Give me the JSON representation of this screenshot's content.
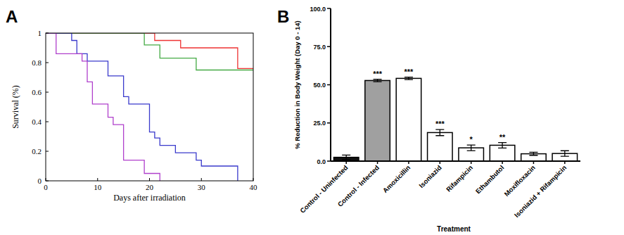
{
  "chart_data": [
    {
      "type": "line",
      "title": "A",
      "x_label": "Days after irradiation",
      "y_label": "Survival (%)",
      "xlim": [
        0,
        40
      ],
      "ylim": [
        0,
        1
      ],
      "xticks": [
        0,
        10,
        20,
        30,
        40
      ],
      "yticks": [
        0,
        0.2,
        0.4,
        0.6,
        0.8,
        1
      ],
      "grid": false,
      "line_style": "step",
      "series": [
        {
          "color": "#ee3333",
          "x": [
            0,
            21,
            26,
            37,
            40
          ],
          "values": [
            1,
            0.95,
            0.9,
            0.76,
            0.76
          ]
        },
        {
          "color": "#44aa44",
          "x": [
            0,
            19,
            22,
            29,
            40
          ],
          "values": [
            1,
            0.92,
            0.83,
            0.75,
            0.75
          ]
        },
        {
          "color": "#3a3acc",
          "x": [
            0,
            5,
            6,
            8,
            12,
            15,
            16,
            20,
            21,
            22,
            25,
            29,
            30,
            37
          ],
          "values": [
            1,
            0.95,
            0.86,
            0.81,
            0.71,
            0.57,
            0.52,
            0.33,
            0.29,
            0.24,
            0.19,
            0.14,
            0.1,
            0
          ]
        },
        {
          "color": "#b040cc",
          "x": [
            0,
            2,
            7,
            8,
            9,
            12,
            13,
            15,
            19,
            22
          ],
          "values": [
            1,
            0.86,
            0.81,
            0.67,
            0.52,
            0.43,
            0.38,
            0.14,
            0.05,
            0
          ]
        }
      ]
    },
    {
      "type": "bar",
      "title": "B",
      "x_label": "Treatment",
      "y_label": "% Reduction in Body Weight (Day 0 - 14)",
      "categories": [
        "Control - Uninfected",
        "Control - Infected",
        "Amoxicillin",
        "Isoniazid",
        "Rifampicin",
        "Ethambutol",
        "Moxifloxacin",
        "Isoniazid + Rifampicin"
      ],
      "values": [
        2.5,
        52.8,
        54.2,
        18.7,
        8.7,
        10.4,
        4.8,
        5.0
      ],
      "errors": [
        1.5,
        0.8,
        0.8,
        2.0,
        1.8,
        1.8,
        1.0,
        1.8
      ],
      "significance": [
        null,
        "***",
        "***",
        "***",
        "*",
        "**",
        null,
        null
      ],
      "colors": [
        "#111111",
        "#a0a0a0",
        "#ffffff",
        "#ffffff",
        "#ffffff",
        "#ffffff",
        "#ffffff",
        "#ffffff"
      ],
      "ylim": [
        0,
        100
      ],
      "yticks": [
        {
          "value": 0,
          "label": "0.0"
        },
        {
          "value": 25,
          "label": "25.0"
        },
        {
          "value": 50,
          "label": "50.0"
        },
        {
          "value": 75,
          "label": "75.0"
        },
        {
          "value": 100,
          "label": "100.0"
        }
      ],
      "grid": false
    }
  ]
}
